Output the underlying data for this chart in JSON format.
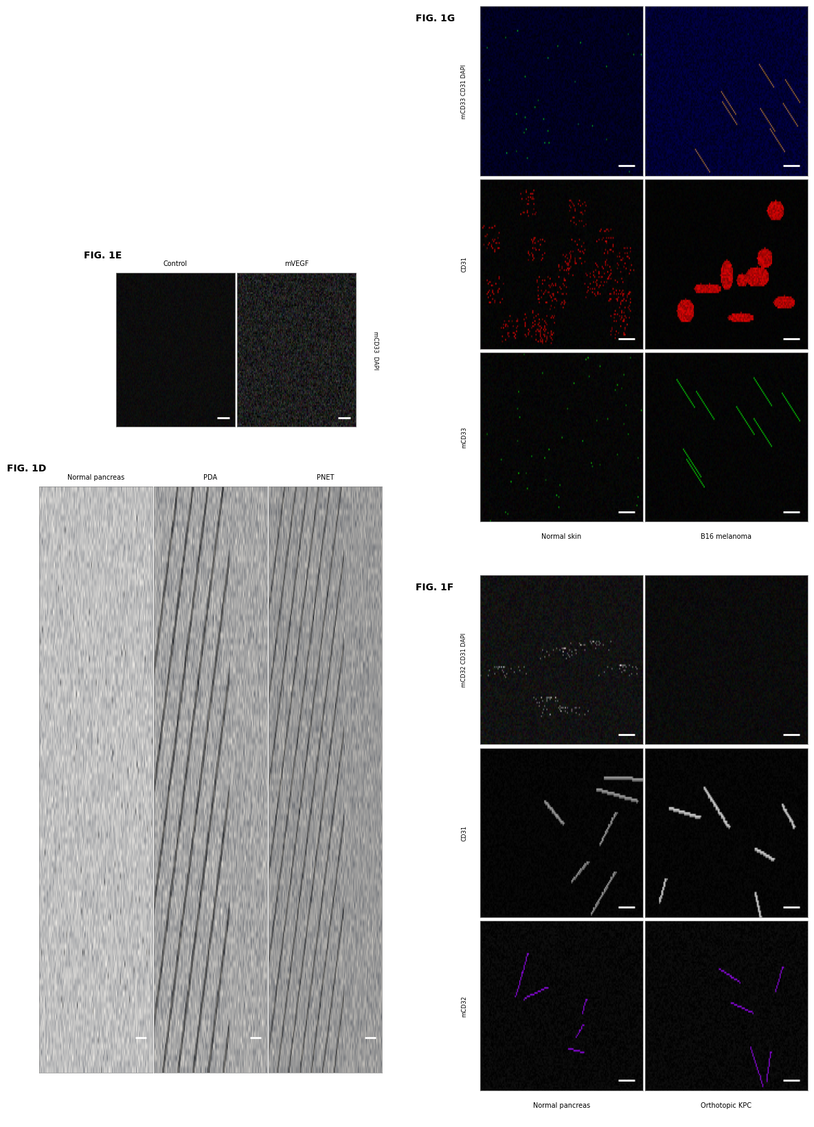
{
  "background_color": "#ffffff",
  "fig_width": 12.4,
  "fig_height": 17.24,
  "panels": {
    "fig1E": {
      "label": "FIG. 1E",
      "col_labels": [
        "Control",
        "mVEGF"
      ],
      "row_label_right": "mCD33  DAPI"
    },
    "fig1D": {
      "label": "FIG. 1D",
      "col_labels": [
        "Normal pancreas",
        "PDA",
        "PNET"
      ]
    },
    "fig1F": {
      "label": "FIG. 1F",
      "col_labels_bottom": [
        "Normal pancreas",
        "Orthotopic KPC"
      ],
      "row_labels": [
        "mCD32 CD31 DAPI",
        "CD31",
        "mCD32"
      ]
    },
    "fig1G": {
      "label": "FIG. 1G",
      "col_labels_bottom": [
        "Normal skin",
        "B16 melanoma"
      ],
      "row_labels": [
        "mCD33 CD31 DAPI",
        "CD31",
        "mCD33"
      ]
    }
  },
  "colors": {
    "border": "#888888",
    "label_text": "#000000",
    "scale_bar": "#ffffff"
  },
  "font_sizes": {
    "panel_label": 10,
    "col_label": 7,
    "row_label": 6
  }
}
